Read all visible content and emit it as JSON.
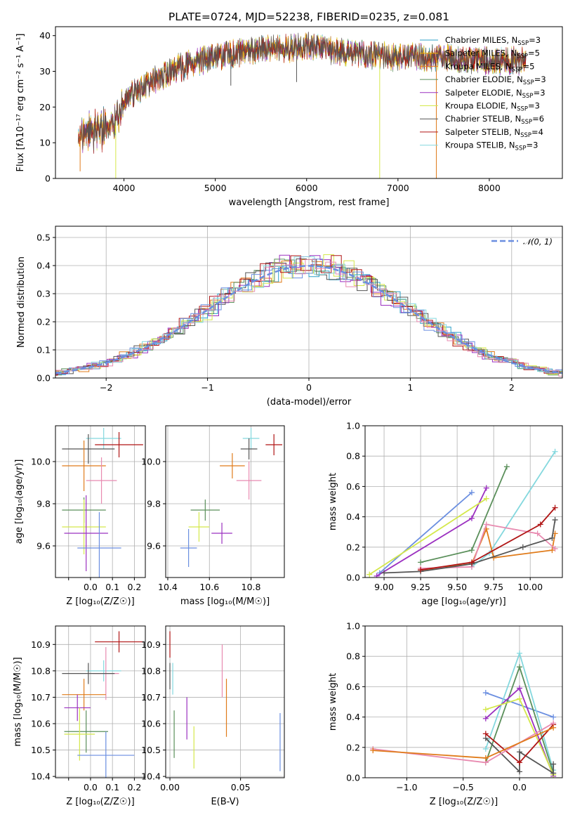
{
  "figure_title": "PLATE=0724, MJD=52238, FIBERID=0235, z=0.081",
  "colors": {
    "Chabrier MILES": "#2ca0c8",
    "Salpeter MILES": "#f0b400",
    "Kroupa MILES": "#e07b1a",
    "Chabrier ELODIE": "#5a8f5a",
    "Salpeter ELODIE": "#9b30c0",
    "Kroupa ELODIE": "#d4e84a",
    "Chabrier STELIB": "#555555",
    "Salpeter STELIB": "#b01515",
    "Kroupa STELIB": "#84d8de",
    "Kroupa MILES line": "#e07b1a",
    "blue": "#6a8ee0",
    "pink": "#e88ab0"
  },
  "chart_data": [
    {
      "id": "spectrum",
      "type": "line",
      "title": "PLATE=0724, MJD=52238, FIBERID=0235, z=0.081",
      "xlabel": "wavelength [Angstrom, rest frame]",
      "ylabel": "Flux [f$_\\lambda$10$^{-17}$ erg cm$^{-2}$ s$^{-1}$ A$^{-1}$]",
      "ylabel_text": "Flux [fλ10⁻¹⁷ erg cm⁻² s⁻¹ A⁻¹]",
      "xlim": [
        3250,
        8800
      ],
      "ylim": [
        0,
        42.5
      ],
      "xticks": [
        4000,
        5000,
        6000,
        7000,
        8000
      ],
      "yticks": [
        0,
        10,
        20,
        30,
        40
      ],
      "legend_position": "top-right",
      "legend": [
        {
          "label": "Chabrier MILES, N",
          "sub": "SSP",
          "n": "=3",
          "color": "#2ca0c8"
        },
        {
          "label": "Salpeter MILES, N",
          "sub": "SSP",
          "n": "=5",
          "color": "#f0b400"
        },
        {
          "label": "Kroupa MILES, N",
          "sub": "SSP",
          "n": "=5",
          "color": "#e07b1a"
        },
        {
          "label": "Chabrier ELODIE, N",
          "sub": "SSP",
          "n": "=3",
          "color": "#5a8f5a"
        },
        {
          "label": "Salpeter ELODIE, N",
          "sub": "SSP",
          "n": "=3",
          "color": "#9b30c0"
        },
        {
          "label": "Kroupa ELODIE, N",
          "sub": "SSP",
          "n": "=3",
          "color": "#d4e84a"
        },
        {
          "label": "Chabrier STELIB, N",
          "sub": "SSP",
          "n": "=6",
          "color": "#555555"
        },
        {
          "label": "Salpeter STELIB, N",
          "sub": "SSP",
          "n": "=4",
          "color": "#b01515"
        },
        {
          "label": "Kroupa STELIB, N",
          "sub": "SSP",
          "n": "=3",
          "color": "#84d8de"
        }
      ],
      "continuum_knots": [
        [
          3500,
          12
        ],
        [
          3800,
          14
        ],
        [
          3950,
          17
        ],
        [
          4000,
          22
        ],
        [
          4300,
          27
        ],
        [
          4600,
          31
        ],
        [
          5000,
          34
        ],
        [
          5500,
          36
        ],
        [
          6000,
          37
        ],
        [
          6500,
          35
        ],
        [
          7000,
          34
        ],
        [
          7500,
          34
        ],
        [
          8000,
          33
        ],
        [
          8400,
          33
        ]
      ],
      "drops": [
        [
          3520,
          2
        ],
        [
          3910,
          0
        ],
        [
          5170,
          26
        ],
        [
          5890,
          27
        ],
        [
          6800,
          0
        ],
        [
          7420,
          0
        ]
      ]
    },
    {
      "id": "residuals",
      "type": "histogram",
      "xlabel": "(data-model)/error",
      "ylabel": "Normed distribution",
      "xlim": [
        -2.5,
        2.5
      ],
      "ylim": [
        0,
        0.54
      ],
      "xticks": [
        -2,
        -1,
        0,
        1,
        2
      ],
      "yticks": [
        0.0,
        0.1,
        0.2,
        0.3,
        0.4,
        0.5
      ],
      "legend_position": "top-right",
      "legend": [
        {
          "label": "𝒩(0, 1)",
          "color": "#6a8ee0",
          "style": "dashed"
        }
      ],
      "bin_width": 0.1,
      "gaussian_mean": 0,
      "gaussian_sigma": 1
    },
    {
      "id": "age-vs-Z",
      "type": "errorbar",
      "xlabel": "Z [log₁₀(Z/Z☉)]",
      "ylabel": "age  [log₁₀(age/yr)]",
      "xlim": [
        -0.16,
        0.25
      ],
      "ylim": [
        9.45,
        10.17
      ],
      "xticks": [
        -0.1,
        0.0,
        0.1,
        0.2
      ],
      "xtick_labels": [
        "",
        "0.0",
        "0.1",
        "0.2"
      ],
      "yticks": [
        9.6,
        9.8,
        10.0
      ],
      "points": [
        {
          "color": "#84d8de",
          "x": 0.06,
          "xerr": 0.08,
          "y": 10.11,
          "yerr": 0.05
        },
        {
          "color": "#b01515",
          "x": 0.13,
          "xerr": 0.11,
          "y": 10.08,
          "yerr": 0.06
        },
        {
          "color": "#555555",
          "x": -0.01,
          "xerr": 0.12,
          "y": 10.06,
          "yerr": 0.07
        },
        {
          "color": "#e07b1a",
          "x": -0.03,
          "xerr": 0.1,
          "y": 9.98,
          "yerr": 0.12
        },
        {
          "color": "#e88ab0",
          "x": 0.05,
          "xerr": 0.07,
          "y": 9.91,
          "yerr": 0.11
        },
        {
          "color": "#5a8f5a",
          "x": -0.03,
          "xerr": 0.1,
          "y": 9.77,
          "yerr": 0.06
        },
        {
          "color": "#d4e84a",
          "x": -0.03,
          "xerr": 0.1,
          "y": 9.69,
          "yerr": 0.13
        },
        {
          "color": "#9b30c0",
          "x": -0.02,
          "xerr": 0.1,
          "y": 9.66,
          "yerr": 0.18
        },
        {
          "color": "#6a8ee0",
          "x": 0.04,
          "xerr": 0.1,
          "y": 9.59,
          "yerr": 0.17
        }
      ]
    },
    {
      "id": "age-vs-mass",
      "type": "errorbar",
      "xlabel": "mass [log₁₀(M/M☉)]",
      "ylabel": "",
      "xlim": [
        10.39,
        10.96
      ],
      "ylim": [
        9.45,
        10.17
      ],
      "xticks": [
        10.4,
        10.6,
        10.8
      ],
      "yticks": [
        9.6,
        9.8,
        10.0
      ],
      "points": [
        {
          "color": "#84d8de",
          "x": 10.8,
          "xerr": 0.04,
          "y": 10.11,
          "yerr": 0.05
        },
        {
          "color": "#b01515",
          "x": 10.91,
          "xerr": 0.04,
          "y": 10.08,
          "yerr": 0.05
        },
        {
          "color": "#555555",
          "x": 10.79,
          "xerr": 0.04,
          "y": 10.06,
          "yerr": 0.05
        },
        {
          "color": "#e07b1a",
          "x": 10.71,
          "xerr": 0.06,
          "y": 9.98,
          "yerr": 0.06
        },
        {
          "color": "#e88ab0",
          "x": 10.79,
          "xerr": 0.06,
          "y": 9.91,
          "yerr": 0.09
        },
        {
          "color": "#5a8f5a",
          "x": 10.58,
          "xerr": 0.07,
          "y": 9.77,
          "yerr": 0.05
        },
        {
          "color": "#d4e84a",
          "x": 10.55,
          "xerr": 0.05,
          "y": 9.69,
          "yerr": 0.07
        },
        {
          "color": "#9b30c0",
          "x": 10.66,
          "xerr": 0.05,
          "y": 9.66,
          "yerr": 0.05
        },
        {
          "color": "#6a8ee0",
          "x": 10.5,
          "xerr": 0.04,
          "y": 9.59,
          "yerr": 0.09
        }
      ]
    },
    {
      "id": "weight-vs-age",
      "type": "line",
      "xlabel": "age  [log₁₀(age/yr)]",
      "ylabel": "mass weight",
      "xlim": [
        8.87,
        10.22
      ],
      "ylim": [
        0,
        1.0
      ],
      "xticks": [
        9.0,
        9.25,
        9.5,
        9.75,
        10.0
      ],
      "yticks": [
        0.0,
        0.2,
        0.4,
        0.6,
        0.8,
        1.0
      ],
      "series": [
        {
          "color": "#6a8ee0",
          "x": [
            8.97,
            9.6
          ],
          "y": [
            0.03,
            0.56
          ]
        },
        {
          "color": "#9b30c0",
          "x": [
            8.95,
            9.6,
            9.7
          ],
          "y": [
            0.01,
            0.39,
            0.59
          ]
        },
        {
          "color": "#d4e84a",
          "x": [
            8.9,
            9.7
          ],
          "y": [
            0.02,
            0.52
          ]
        },
        {
          "color": "#5a8f5a",
          "x": [
            9.25,
            9.6,
            9.84
          ],
          "y": [
            0.1,
            0.18,
            0.73
          ]
        },
        {
          "color": "#84d8de",
          "x": [
            9.6,
            9.72,
            10.17
          ],
          "y": [
            0.07,
            0.16,
            0.83
          ]
        },
        {
          "color": "#e07b1a",
          "x": [
            9.25,
            9.6,
            9.7,
            9.75,
            10.15,
            10.17
          ],
          "y": [
            0.05,
            0.09,
            0.32,
            0.13,
            0.18,
            0.29
          ]
        },
        {
          "color": "#e88ab0",
          "x": [
            9.25,
            9.6,
            9.7,
            10.05,
            10.17
          ],
          "y": [
            0.06,
            0.07,
            0.35,
            0.29,
            0.19
          ]
        },
        {
          "color": "#555555",
          "x": [
            9.0,
            9.25,
            9.6,
            9.95,
            10.15,
            10.17
          ],
          "y": [
            0.03,
            0.04,
            0.09,
            0.2,
            0.26,
            0.38
          ]
        },
        {
          "color": "#b01515",
          "x": [
            9.25,
            9.6,
            10.07,
            10.17
          ],
          "y": [
            0.05,
            0.1,
            0.35,
            0.46
          ]
        }
      ]
    },
    {
      "id": "mass-vs-Z",
      "type": "errorbar",
      "xlabel": "Z [log₁₀(Z/Z☉)]",
      "ylabel": "mass [log₁₀(M/M☉)]",
      "xlim": [
        -0.16,
        0.25
      ],
      "ylim": [
        10.395,
        10.97
      ],
      "xticks": [
        -0.1,
        0.0,
        0.1,
        0.2
      ],
      "xtick_labels": [
        "",
        "0.0",
        "0.1",
        "0.2"
      ],
      "yticks": [
        10.4,
        10.5,
        10.6,
        10.7,
        10.8,
        10.9
      ],
      "points": [
        {
          "color": "#b01515",
          "x": 0.13,
          "xerr": 0.11,
          "y": 10.91,
          "yerr": 0.04
        },
        {
          "color": "#84d8de",
          "x": 0.06,
          "xerr": 0.08,
          "y": 10.8,
          "yerr": 0.04
        },
        {
          "color": "#e88ab0",
          "x": 0.07,
          "xerr": 0.06,
          "y": 10.79,
          "yerr": 0.1
        },
        {
          "color": "#555555",
          "x": -0.01,
          "xerr": 0.12,
          "y": 10.79,
          "yerr": 0.04
        },
        {
          "color": "#e07b1a",
          "x": -0.03,
          "xerr": 0.1,
          "y": 10.71,
          "yerr": 0.06
        },
        {
          "color": "#9b30c0",
          "x": -0.06,
          "xerr": 0.06,
          "y": 10.66,
          "yerr": 0.05
        },
        {
          "color": "#5a8f5a",
          "x": -0.02,
          "xerr": 0.1,
          "y": 10.57,
          "yerr": 0.08
        },
        {
          "color": "#d4e84a",
          "x": -0.05,
          "xerr": 0.07,
          "y": 10.56,
          "yerr": 0.1
        },
        {
          "color": "#6a8ee0",
          "x": 0.07,
          "xerr": 0.13,
          "y": 10.48,
          "yerr": 0.09
        }
      ]
    },
    {
      "id": "mass-vs-ebv",
      "type": "errorbar",
      "xlabel": "E(B-V)",
      "ylabel": "",
      "xlim": [
        -0.003,
        0.081
      ],
      "ylim": [
        10.395,
        10.97
      ],
      "xticks": [
        0.0,
        0.05
      ],
      "xtick_labels": [
        "0.00",
        "0.05"
      ],
      "yticks": [
        10.4,
        10.5,
        10.6,
        10.7,
        10.8,
        10.9
      ],
      "points": [
        {
          "color": "#b01515",
          "x": 0.0,
          "y": 10.9,
          "yerr": 0.05
        },
        {
          "color": "#84d8de",
          "x": 0.002,
          "y": 10.77,
          "yerr": 0.06
        },
        {
          "color": "#555555",
          "x": 0.0,
          "y": 10.78,
          "yerr": 0.05
        },
        {
          "color": "#5a8f5a",
          "x": 0.003,
          "y": 10.56,
          "yerr": 0.09
        },
        {
          "color": "#9b30c0",
          "x": 0.012,
          "y": 10.62,
          "yerr": 0.08
        },
        {
          "color": "#d4e84a",
          "x": 0.017,
          "y": 10.51,
          "yerr": 0.08
        },
        {
          "color": "#e88ab0",
          "x": 0.037,
          "y": 10.8,
          "yerr": 0.1
        },
        {
          "color": "#e07b1a",
          "x": 0.04,
          "y": 10.66,
          "yerr": 0.11
        },
        {
          "color": "#6a8ee0",
          "x": 0.078,
          "y": 10.53,
          "yerr": 0.11
        }
      ]
    },
    {
      "id": "weight-vs-Z",
      "type": "line",
      "xlabel": "Z [log₁₀(Z/Z☉)]",
      "ylabel": "mass weight",
      "xlim": [
        -1.37,
        0.38
      ],
      "ylim": [
        0,
        1.0
      ],
      "xticks": [
        -1.0,
        -0.5,
        0.0
      ],
      "yticks": [
        0.0,
        0.2,
        0.4,
        0.6,
        0.8,
        1.0
      ],
      "series": [
        {
          "color": "#6a8ee0",
          "x": [
            -0.3,
            0.3
          ],
          "y": [
            0.56,
            0.4
          ]
        },
        {
          "color": "#84d8de",
          "x": [
            -0.3,
            0.0,
            0.3
          ],
          "y": [
            0.19,
            0.82,
            0.05
          ]
        },
        {
          "color": "#5a8f5a",
          "x": [
            -0.3,
            0.0,
            0.3
          ],
          "y": [
            0.1,
            0.73,
            0.03
          ]
        },
        {
          "color": "#9b30c0",
          "x": [
            -0.3,
            0.0,
            0.3
          ],
          "y": [
            0.39,
            0.59,
            0.01
          ]
        },
        {
          "color": "#d4e84a",
          "x": [
            -0.3,
            0.0,
            0.3
          ],
          "y": [
            0.45,
            0.52,
            0.02
          ]
        },
        {
          "color": "#555555",
          "x": [
            -0.3,
            0.0,
            0.0,
            0.3,
            0.3
          ],
          "y": [
            0.26,
            0.04,
            0.17,
            0.03,
            0.09
          ]
        },
        {
          "color": "#b01515",
          "x": [
            -0.3,
            0.0,
            0.3
          ],
          "y": [
            0.29,
            0.1,
            0.35
          ]
        },
        {
          "color": "#e88ab0",
          "x": [
            -1.3,
            -0.3,
            0.3
          ],
          "y": [
            0.19,
            0.1,
            0.36
          ]
        },
        {
          "color": "#e07b1a",
          "x": [
            -1.3,
            -0.3,
            0.3
          ],
          "y": [
            0.18,
            0.13,
            0.33
          ]
        }
      ]
    }
  ]
}
